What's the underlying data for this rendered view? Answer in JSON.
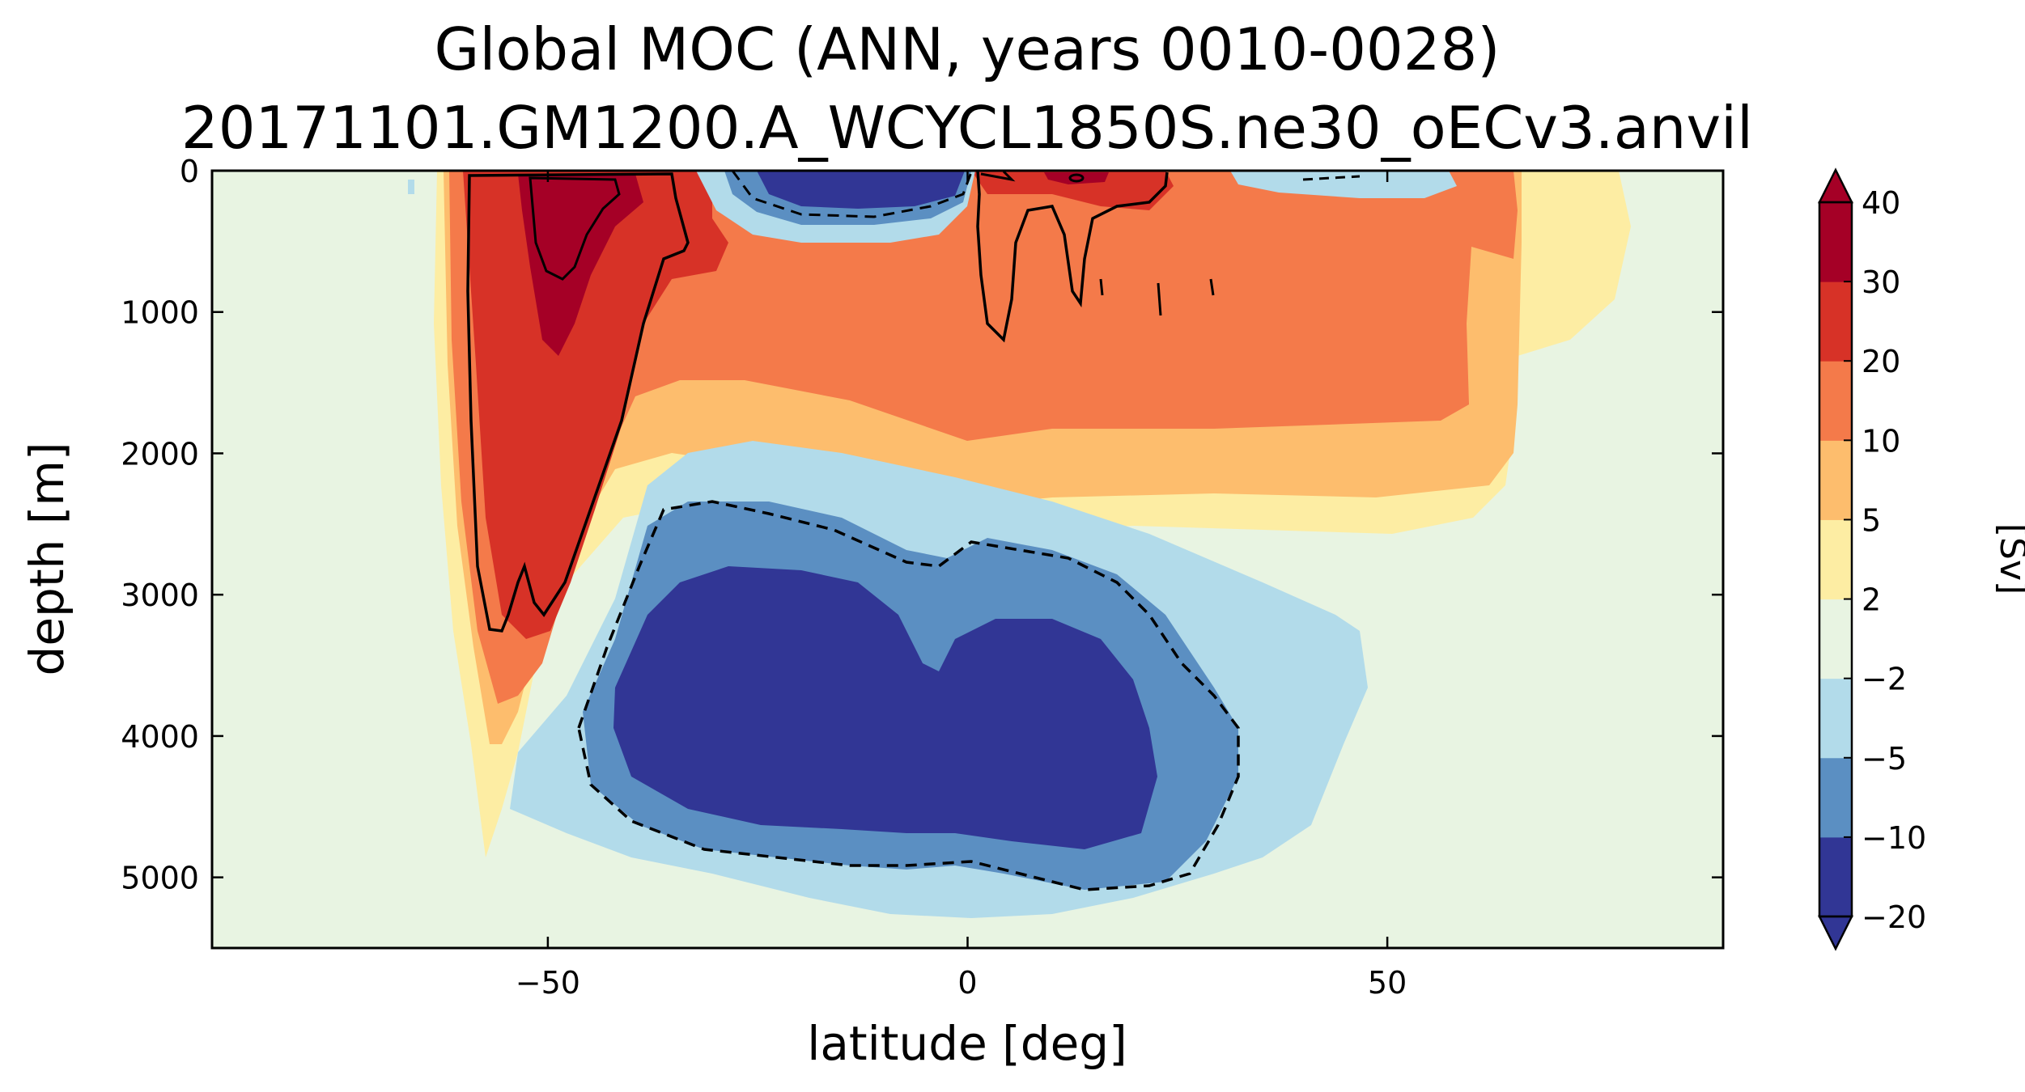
{
  "chart_data": {
    "type": "heatmap",
    "title": "Global MOC (ANN, years 0010-0028)",
    "subtitle": "20171101.GM1200.A_WCYCL1850S.ne30_oECv3.anvil",
    "xlabel": "latitude [deg]",
    "ylabel": "depth [m]",
    "xlim": [
      -90,
      90
    ],
    "ylim": [
      5500,
      0
    ],
    "y_inverted": true,
    "x_ticks": [
      -50,
      0,
      50
    ],
    "x_tick_labels": [
      "−50",
      "0",
      "50"
    ],
    "y_ticks": [
      0,
      1000,
      2000,
      3000,
      4000,
      5000
    ],
    "y_tick_labels": [
      "0",
      "1000",
      "2000",
      "3000",
      "4000",
      "5000"
    ],
    "grid": false,
    "colorbar": {
      "label": "[Sv]",
      "levels": [
        -20,
        -10,
        -5,
        -2,
        2,
        5,
        10,
        20,
        30,
        40
      ],
      "tick_labels": [
        "−20",
        "−10",
        "−5",
        "−2",
        "2",
        "5",
        "10",
        "20",
        "30",
        "40"
      ],
      "colors": [
        "#313695",
        "#5b8fc2",
        "#b2dbea",
        "#e8f4e2",
        "#fdeda3",
        "#fdbd6d",
        "#f47a4a",
        "#d73227",
        "#a50026"
      ],
      "under_color": "#313695",
      "over_color": "#a50026",
      "extend": "both"
    },
    "background_color": "#e8f4e2",
    "contour_lines": [
      {
        "level": 20,
        "style": "solid"
      },
      {
        "level": -10,
        "style": "dashed"
      }
    ],
    "cells": [
      {
        "name": "nh-positive-upper",
        "value": 12,
        "x": [
          0,
          60
        ],
        "y": [
          0,
          1800
        ]
      },
      {
        "name": "sh-positive-cell",
        "value": 25,
        "x": [
          -60,
          -38
        ],
        "y": [
          0,
          3300
        ]
      },
      {
        "name": "sh-core-max",
        "value": 35,
        "x": [
          -52,
          -44
        ],
        "y": [
          50,
          900
        ]
      },
      {
        "name": "tropical-negative-surface",
        "value": -20,
        "x": [
          -28,
          -2
        ],
        "y": [
          0,
          250
        ]
      },
      {
        "name": "deep-negative-cell",
        "value": -22,
        "x": [
          -45,
          22
        ],
        "y": [
          2700,
          4700
        ]
      },
      {
        "name": "nh-surface-max",
        "value": 30,
        "x": [
          2,
          22
        ],
        "y": [
          0,
          100
        ]
      },
      {
        "name": "nh-weak-negative",
        "value": -3,
        "x": [
          32,
          50
        ],
        "y": [
          0,
          250
        ]
      }
    ]
  }
}
